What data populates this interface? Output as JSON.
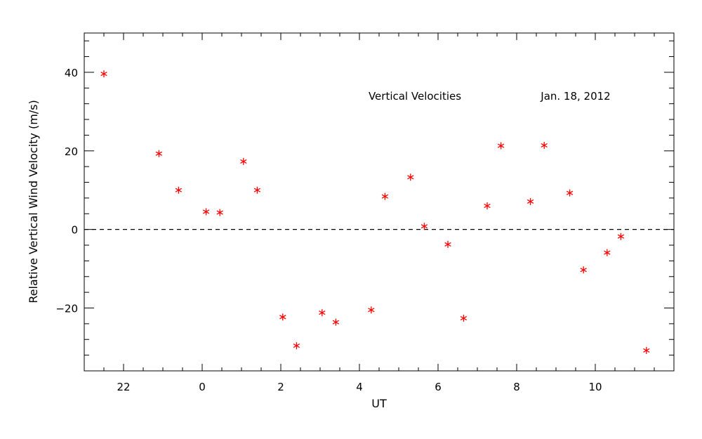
{
  "chart_data": {
    "type": "scatter",
    "title": "Vertical Velocities",
    "date_label": "Jan. 18, 2012",
    "xlabel": "UT",
    "ylabel": "Relative Vertical Wind Velocity (m/s)",
    "xlim": [
      21,
      36
    ],
    "ylim": [
      -36,
      50
    ],
    "x_ticks": [
      22,
      24,
      26,
      28,
      30,
      32,
      34
    ],
    "x_tick_labels": [
      "22",
      "0",
      "2",
      "4",
      "6",
      "8",
      "10"
    ],
    "y_ticks": [
      -20,
      0,
      20,
      40
    ],
    "y_tick_labels": [
      "−20",
      "0",
      "20",
      "40"
    ],
    "reference_line_y": 0,
    "marker_color": "#ff0000",
    "series": [
      {
        "points": [
          {
            "x": 21.5,
            "y": 39.6
          },
          {
            "x": 22.9,
            "y": 19.3
          },
          {
            "x": 23.4,
            "y": 10.0
          },
          {
            "x": 24.1,
            "y": 4.5
          },
          {
            "x": 24.45,
            "y": 4.3
          },
          {
            "x": 25.05,
            "y": 17.3
          },
          {
            "x": 25.4,
            "y": 10.0
          },
          {
            "x": 26.05,
            "y": -22.3
          },
          {
            "x": 26.4,
            "y": -29.6
          },
          {
            "x": 27.05,
            "y": -21.2
          },
          {
            "x": 27.4,
            "y": -23.6
          },
          {
            "x": 28.3,
            "y": -20.5
          },
          {
            "x": 28.65,
            "y": 8.4
          },
          {
            "x": 29.3,
            "y": 13.3
          },
          {
            "x": 29.65,
            "y": 0.8
          },
          {
            "x": 30.25,
            "y": -3.8
          },
          {
            "x": 30.65,
            "y": -22.6
          },
          {
            "x": 31.25,
            "y": 6.0
          },
          {
            "x": 31.6,
            "y": 21.3
          },
          {
            "x": 32.35,
            "y": 7.1
          },
          {
            "x": 32.7,
            "y": 21.4
          },
          {
            "x": 33.35,
            "y": 9.3
          },
          {
            "x": 33.7,
            "y": -10.3
          },
          {
            "x": 34.3,
            "y": -5.9
          },
          {
            "x": 34.65,
            "y": -1.8
          },
          {
            "x": 35.3,
            "y": -30.8
          }
        ]
      }
    ]
  }
}
